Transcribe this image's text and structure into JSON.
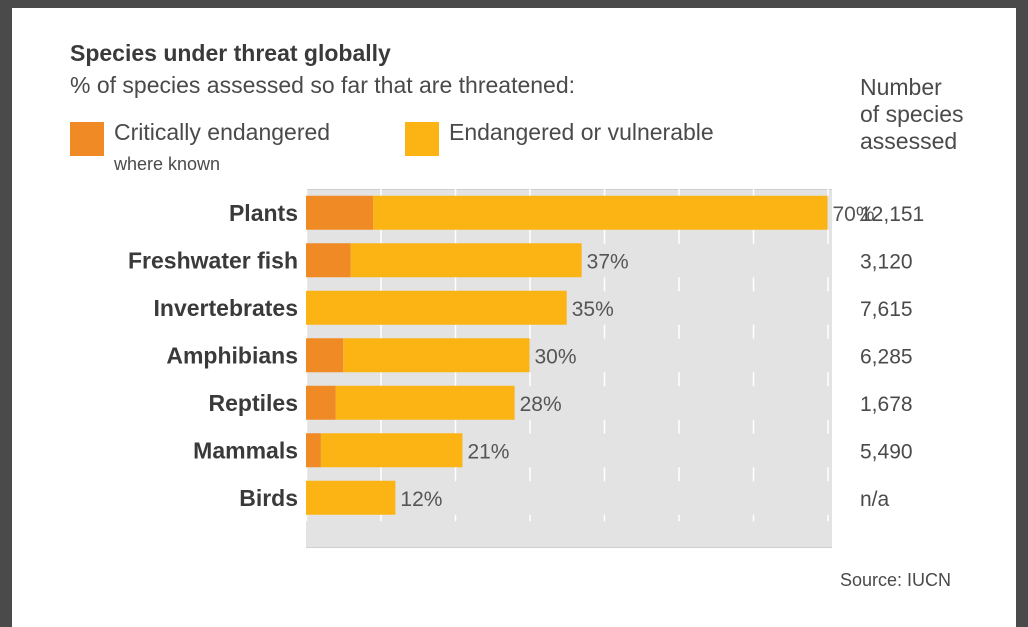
{
  "chart_data": {
    "type": "bar",
    "orientation": "horizontal",
    "stacked": true,
    "title": "Species under threat globally",
    "subtitle": "% of species assessed so far that are threatened:",
    "categories": [
      "Plants",
      "Freshwater fish",
      "Invertebrates",
      "Amphibians",
      "Reptiles",
      "Mammals",
      "Birds"
    ],
    "series": [
      {
        "name": "Critically endangered",
        "color": "#f08a24",
        "values": [
          9,
          6,
          0,
          5,
          4,
          2,
          0
        ]
      },
      {
        "name": "Endangered or vulnerable",
        "color": "#fbb414",
        "values": [
          61,
          31,
          35,
          25,
          24,
          19,
          12
        ]
      }
    ],
    "totals": [
      70,
      37,
      35,
      30,
      28,
      21,
      12
    ],
    "total_labels": [
      "70%",
      "37%",
      "35%",
      "30%",
      "28%",
      "21%",
      "12%"
    ],
    "counts_header": "Number of species assessed",
    "counts": [
      "12,151",
      "3,120",
      "7,615",
      "6,285",
      "1,678",
      "5,490",
      "n/a"
    ],
    "legend": {
      "critical_label": "Critically endangered",
      "critical_note": "where known",
      "endangered_label": "Endangered or vulnerable"
    },
    "xlim": [
      0,
      100
    ],
    "grid": true,
    "background_color": "#e3e3e3",
    "source": "Source: IUCN"
  }
}
